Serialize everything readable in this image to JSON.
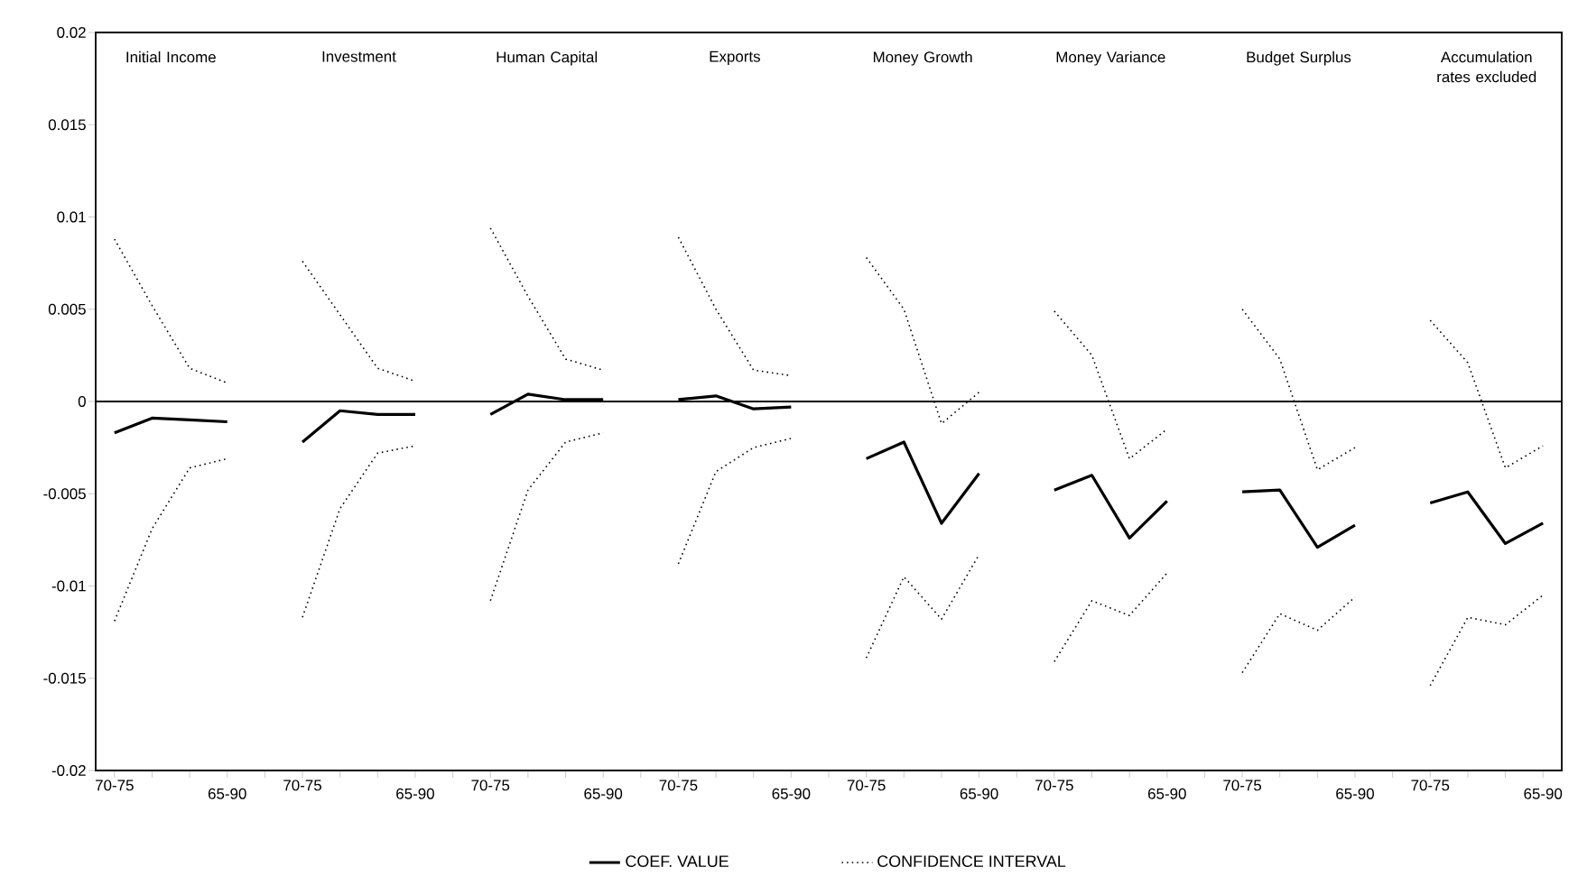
{
  "chart_data": {
    "type": "line",
    "categories": [
      "70-75",
      null,
      null,
      "65-90",
      null,
      "70-75",
      null,
      null,
      "65-90",
      null,
      "70-75",
      null,
      null,
      "65-90",
      null,
      "70-75",
      null,
      null,
      "65-90",
      null,
      "70-75",
      null,
      null,
      "65-90",
      null,
      "70-75",
      null,
      null,
      "65-90",
      null,
      "70-75",
      null,
      null,
      "65-90",
      null,
      "70-75",
      null,
      null,
      "65-90"
    ],
    "series": [
      {
        "name": "COEF. VALUE",
        "color": "#000000",
        "line_style": "solid",
        "values": [
          -0.0017,
          -0.0009,
          -0.001,
          -0.0011,
          null,
          -0.0022,
          -0.0005,
          -0.0007,
          -0.0007,
          null,
          -0.0007,
          0.0004,
          0.0001,
          0.0001,
          null,
          0.0001,
          0.0003,
          -0.0004,
          -0.0003,
          null,
          -0.0031,
          -0.0022,
          -0.0066,
          -0.0039,
          null,
          -0.0048,
          -0.004,
          -0.0074,
          -0.0054,
          null,
          -0.0049,
          -0.0048,
          -0.0079,
          -0.0067,
          null,
          -0.0055,
          -0.0049,
          -0.0077,
          -0.0066
        ]
      },
      {
        "name": "CONFIDENCE INTERVAL",
        "color": "#000000",
        "line_style": "dotted",
        "values": [
          0.0088,
          0.0052,
          0.0018,
          0.001,
          null,
          0.0076,
          0.0047,
          0.0018,
          0.0011,
          null,
          0.0094,
          0.0057,
          0.0023,
          0.0017,
          null,
          0.0089,
          0.005,
          0.0017,
          0.0014,
          null,
          0.0078,
          0.005,
          -0.0012,
          0.0005,
          null,
          0.0049,
          0.0025,
          -0.0031,
          -0.0015,
          null,
          0.005,
          0.0023,
          -0.0037,
          -0.0025,
          null,
          0.0044,
          0.0021,
          -0.0036,
          -0.0024
        ]
      },
      {
        "color": "#000000",
        "line_style": "dotted",
        "values": [
          -0.0119,
          -0.0069,
          -0.0036,
          -0.0031,
          null,
          -0.0117,
          -0.0058,
          -0.0028,
          -0.0024,
          null,
          -0.0108,
          -0.0048,
          -0.0022,
          -0.0017,
          null,
          -0.0088,
          -0.0038,
          -0.0025,
          -0.002,
          null,
          -0.0139,
          -0.0095,
          -0.0118,
          -0.0083,
          null,
          -0.0141,
          -0.0108,
          -0.0116,
          -0.0093,
          null,
          -0.0147,
          -0.0115,
          -0.0124,
          -0.0106,
          null,
          -0.0154,
          -0.0117,
          -0.0121,
          -0.0105
        ]
      }
    ],
    "ylim": [
      -0.02,
      0.02
    ],
    "yticks": [
      -0.02,
      -0.015,
      -0.01,
      -0.005,
      0,
      0.005,
      0.01,
      0.015,
      0.02
    ],
    "ref_lines": [
      {
        "axis": "y",
        "value": 0
      }
    ],
    "annotations": [
      "Initial Income",
      "Investment",
      "Human Capital",
      "Exports",
      "Money Growth",
      "Money Variance",
      "Budget Surplus",
      "Accumulation rates excluded"
    ],
    "legend": "bottom",
    "marker": "none",
    "grid": false
  }
}
